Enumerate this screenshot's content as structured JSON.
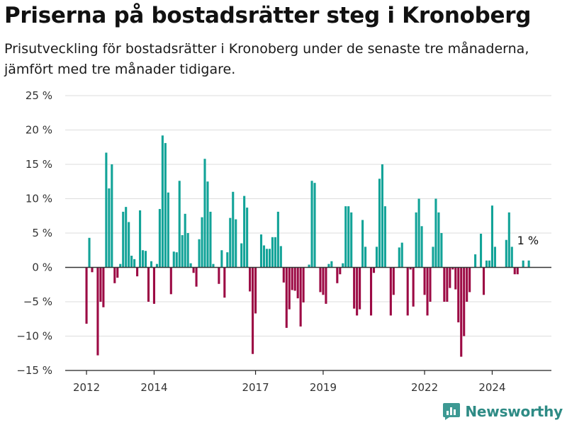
{
  "title": "Priserna på bostadsrätter steg i Kronoberg",
  "subtitle": "Prisutveckling för bostadsrätter i Kronoberg under de senaste tre månaderna, jämfört med tre månader tidigare.",
  "brand": {
    "name": "Newsworthy",
    "icon": "newsworthy-logo-icon"
  },
  "colors": {
    "positive": "#12a398",
    "negative": "#9c0a44",
    "grid": "#dddddd",
    "zero_line": "#333333"
  },
  "chart_data": {
    "type": "bar",
    "title": "Priserna på bostadsrätter steg i Kronoberg",
    "subtitle": "Prisutveckling för bostadsrätter i Kronoberg under de senaste tre månaderna, jämfört med tre månader tidigare.",
    "ylabel": "",
    "xlabel": "",
    "ylim": [
      -15,
      25
    ],
    "yticks": [
      25,
      20,
      15,
      10,
      5,
      0,
      -5,
      -10,
      -15
    ],
    "ytick_labels": [
      "25 %",
      "20 %",
      "15 %",
      "10 %",
      "5 %",
      "0 %",
      "−5 %",
      "−10 %",
      "−15 %"
    ],
    "xticks": [
      "2012",
      "2014",
      "2017",
      "2019",
      "2022",
      "2024"
    ],
    "grid": true,
    "x_start": "2012-01",
    "x_frequency": "monthly",
    "annotation": {
      "label": "1 %",
      "value": 1
    },
    "values": [
      -8.2,
      4.3,
      -0.7,
      0,
      -12.8,
      -5,
      -5.8,
      16.7,
      11.5,
      15,
      -2.3,
      -1.5,
      0.5,
      8.1,
      8.8,
      6.6,
      1.7,
      1.2,
      -1.3,
      8.3,
      2.5,
      2.4,
      -5,
      0.9,
      -5.3,
      0.5,
      8.5,
      19.2,
      18.1,
      10.9,
      -3.9,
      2.3,
      2.2,
      12.6,
      4.7,
      7.8,
      5,
      0.6,
      -0.8,
      -2.8,
      4.1,
      7.3,
      15.8,
      12.5,
      8.1,
      0.5,
      0,
      -2.4,
      2.5,
      -4.4,
      2.2,
      7.2,
      11,
      7,
      0,
      3.5,
      10.4,
      8.7,
      -3.5,
      -12.6,
      -6.7,
      0,
      4.8,
      3.2,
      2.7,
      2.7,
      4.4,
      4.4,
      8.1,
      3.1,
      -2.2,
      -8.8,
      -6.1,
      -3.3,
      -3.4,
      -4.5,
      -8.6,
      -5.1,
      0,
      0.4,
      12.6,
      12.3,
      0,
      -3.6,
      -4,
      -5.3,
      0.5,
      0.9,
      0,
      -2.3,
      -1,
      0.6,
      8.9,
      8.9,
      8,
      -6,
      -7,
      -6.1,
      6.9,
      3,
      0,
      -7,
      -0.8,
      3,
      12.9,
      15,
      8.9,
      0,
      -7,
      -4,
      0,
      2.9,
      3.6,
      0,
      -7,
      -0.3,
      -5.7,
      8,
      10,
      6,
      -4,
      -7,
      -5,
      3,
      10,
      8,
      5,
      -5,
      -5,
      -3,
      -0.3,
      -3.2,
      -8,
      -13,
      -10,
      -5,
      -3.6,
      0,
      1.9,
      0,
      4.9,
      -4,
      1,
      1,
      9,
      3,
      0,
      0,
      0,
      4,
      8,
      3,
      -1,
      -1,
      0,
      1,
      0,
      1
    ]
  }
}
